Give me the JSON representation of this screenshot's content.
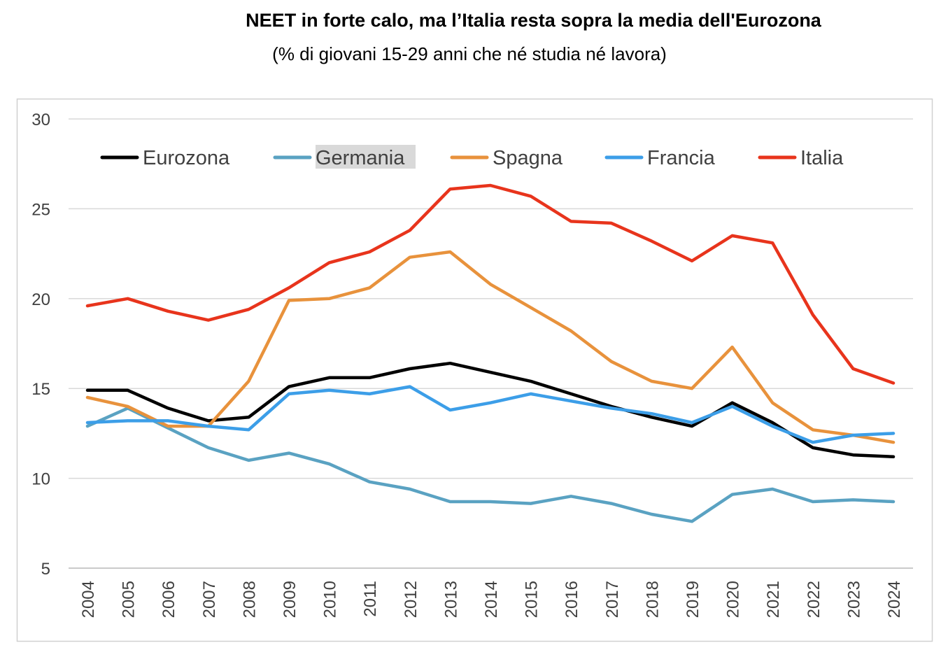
{
  "chart_data": {
    "type": "line",
    "title": "NEET in forte calo, ma l’Italia resta sopra la media dell'Eurozona",
    "subtitle": "(% di giovani 15-29 anni che né studia né lavora)",
    "xlabel": "",
    "ylabel": "",
    "ylim": [
      5,
      30
    ],
    "yticks": [
      "5",
      "10",
      "15",
      "20",
      "25",
      "30"
    ],
    "grid": true,
    "legend_position": "top",
    "categories": [
      "2004",
      "2005",
      "2006",
      "2007",
      "2008",
      "2009",
      "2010",
      "2011",
      "2012",
      "2013",
      "2014",
      "2015",
      "2016",
      "2017",
      "2018",
      "2019",
      "2020",
      "2021",
      "2022",
      "2023",
      "2024"
    ],
    "series": [
      {
        "name": "Eurozona",
        "color": "#000000",
        "highlighted": false,
        "values": [
          14.9,
          14.9,
          13.9,
          13.2,
          13.4,
          15.1,
          15.6,
          15.6,
          16.1,
          16.4,
          15.9,
          15.4,
          14.7,
          14.0,
          13.4,
          12.9,
          14.2,
          13.1,
          11.7,
          11.3,
          11.2
        ]
      },
      {
        "name": "Germania",
        "color": "#5AA2C2",
        "highlighted": true,
        "values": [
          12.9,
          13.9,
          12.8,
          11.7,
          11.0,
          11.4,
          10.8,
          9.8,
          9.4,
          8.7,
          8.7,
          8.6,
          9.0,
          8.6,
          8.0,
          7.6,
          9.1,
          9.4,
          8.7,
          8.8,
          8.7
        ]
      },
      {
        "name": "Spagna",
        "color": "#E8923C",
        "highlighted": false,
        "values": [
          14.5,
          14.0,
          12.9,
          12.9,
          15.4,
          19.9,
          20.0,
          20.6,
          22.3,
          22.6,
          20.8,
          19.5,
          18.2,
          16.5,
          15.4,
          15.0,
          17.3,
          14.2,
          12.7,
          12.4,
          12.0
        ]
      },
      {
        "name": "Francia",
        "color": "#3C9EE8",
        "highlighted": false,
        "values": [
          13.1,
          13.2,
          13.2,
          12.9,
          12.7,
          14.7,
          14.9,
          14.7,
          15.1,
          13.8,
          14.2,
          14.7,
          14.3,
          13.9,
          13.6,
          13.1,
          14.0,
          12.9,
          12.0,
          12.4,
          12.5
        ]
      },
      {
        "name": "Italia",
        "color": "#E8341C",
        "highlighted": false,
        "values": [
          19.6,
          20.0,
          19.3,
          18.8,
          19.4,
          20.6,
          22.0,
          22.6,
          23.8,
          26.1,
          26.3,
          25.7,
          24.3,
          24.2,
          23.2,
          22.1,
          23.5,
          23.1,
          19.1,
          16.1,
          15.3
        ]
      }
    ]
  }
}
